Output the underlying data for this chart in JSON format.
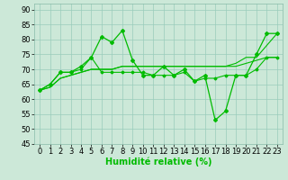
{
  "x": [
    0,
    1,
    2,
    3,
    4,
    5,
    6,
    7,
    8,
    9,
    10,
    11,
    12,
    13,
    14,
    15,
    16,
    17,
    18,
    19,
    20,
    21,
    22,
    23
  ],
  "line1": [
    63,
    65,
    69,
    69,
    71,
    74,
    81,
    79,
    83,
    73,
    68,
    68,
    71,
    68,
    70,
    66,
    68,
    53,
    56,
    68,
    68,
    75,
    82,
    82
  ],
  "line2": [
    63,
    65,
    69,
    69,
    70,
    74,
    69,
    69,
    69,
    69,
    69,
    68,
    68,
    68,
    69,
    66,
    67,
    67,
    68,
    68,
    68,
    70,
    74,
    74
  ],
  "line3": [
    63,
    64,
    67,
    68,
    69,
    70,
    70,
    70,
    71,
    71,
    71,
    71,
    71,
    71,
    71,
    71,
    71,
    71,
    71,
    71,
    72,
    73,
    74,
    74
  ],
  "line4": [
    63,
    64,
    67,
    68,
    69,
    70,
    70,
    70,
    71,
    71,
    71,
    71,
    71,
    71,
    71,
    71,
    71,
    71,
    71,
    72,
    74,
    74,
    78,
    82
  ],
  "bg_color": "#cce8d8",
  "grid_color": "#99ccbb",
  "line_color": "#00bb00",
  "xlabel": "Humidité relative (%)",
  "xlabel_fontsize": 7,
  "tick_fontsize": 6,
  "ylim": [
    45,
    92
  ],
  "yticks": [
    45,
    50,
    55,
    60,
    65,
    70,
    75,
    80,
    85,
    90
  ],
  "xlim": [
    -0.5,
    23.5
  ],
  "xticks": [
    0,
    1,
    2,
    3,
    4,
    5,
    6,
    7,
    8,
    9,
    10,
    11,
    12,
    13,
    14,
    15,
    16,
    17,
    18,
    19,
    20,
    21,
    22,
    23
  ]
}
